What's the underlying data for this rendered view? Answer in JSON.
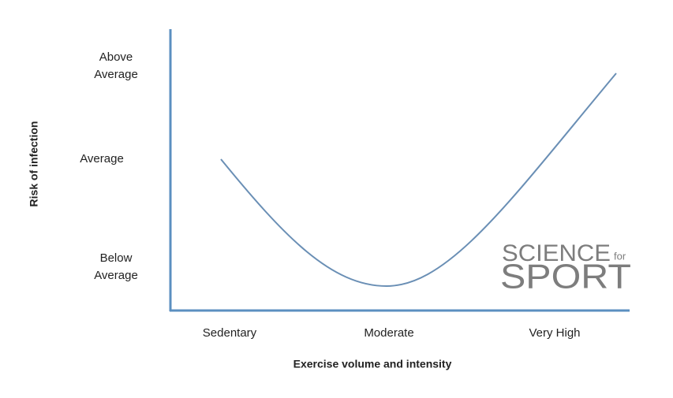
{
  "y_axis": {
    "title": "Risk of infection",
    "labels": [
      [
        "Above",
        "Average"
      ],
      [
        "Average"
      ],
      [
        "Below",
        "Average"
      ]
    ]
  },
  "x_axis": {
    "title": "Exercise volume and intensity",
    "labels": [
      "Sedentary",
      "Moderate",
      "Very High"
    ]
  },
  "logo": {
    "line1": "SCIENCE",
    "small": "for",
    "line2": "SPORT"
  }
}
